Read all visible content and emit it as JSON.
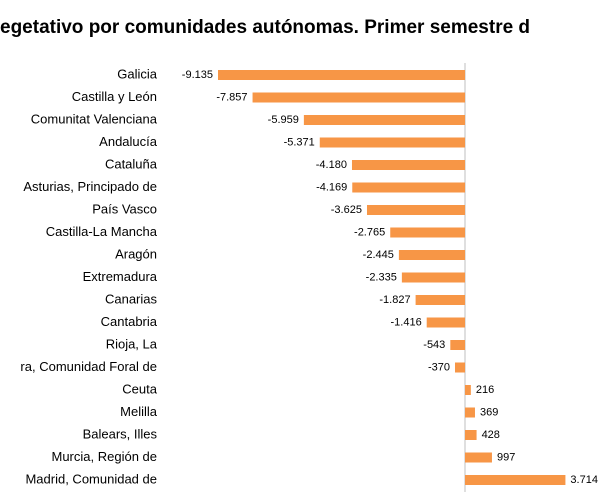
{
  "chart_data": {
    "type": "bar",
    "orientation": "horizontal",
    "title": "egetativo por comunidades autónomas. Primer semestre d",
    "color": "#f79646",
    "categories": [
      "Galicia",
      "Castilla y León",
      "Comunitat Valenciana",
      "Andalucía",
      "Cataluña",
      "Asturias, Principado de",
      "País Vasco",
      "Castilla-La Mancha",
      "Aragón",
      "Extremadura",
      "Canarias",
      "Cantabria",
      "Rioja, La",
      "ra, Comunidad Foral de",
      "Ceuta",
      "Melilla",
      "Balears, Illes",
      "Murcia, Región de",
      "Madrid, Comunidad de"
    ],
    "values": [
      -9135,
      -7857,
      -5959,
      -5371,
      -4180,
      -4169,
      -3625,
      -2765,
      -2445,
      -2335,
      -1827,
      -1416,
      -543,
      -370,
      216,
      369,
      428,
      997,
      3714
    ],
    "value_labels": [
      "-9.135",
      "-7.857",
      "-5.959",
      "-5.371",
      "-4.180",
      "-4.169",
      "-3.625",
      "-2.765",
      "-2.445",
      "-2.335",
      "-1.827",
      "-1.416",
      "-543",
      "-370",
      "216",
      "369",
      "428",
      "997",
      "3.714"
    ]
  }
}
